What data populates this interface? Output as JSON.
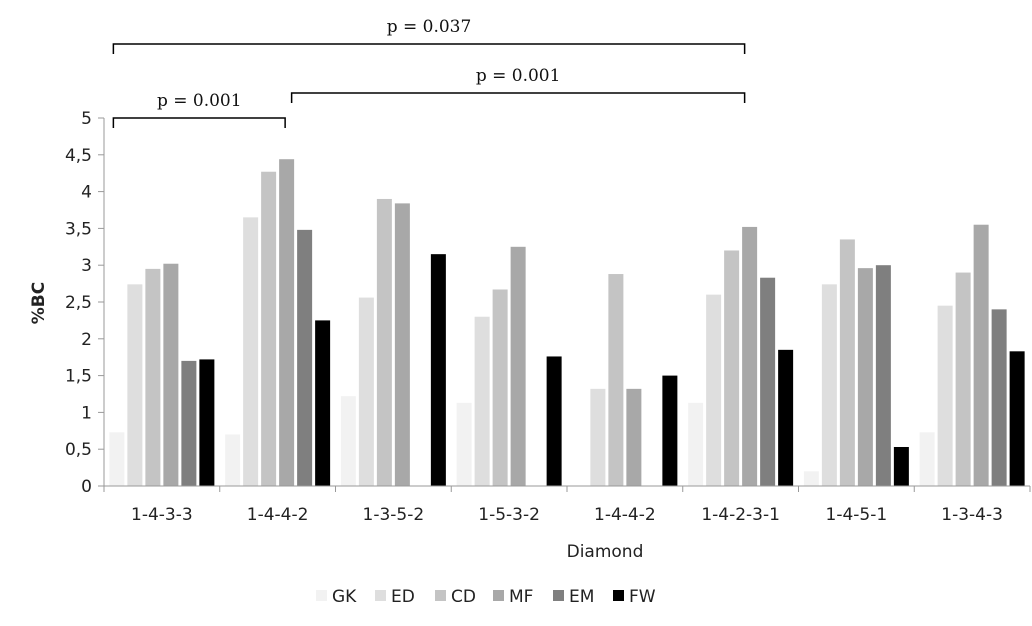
{
  "chart_data": {
    "type": "bar",
    "title": "",
    "xlabel": "Diamond",
    "ylabel": "%BC",
    "ylim": [
      0,
      5
    ],
    "yticks": [
      "0",
      "0,5",
      "1",
      "1,5",
      "2",
      "2,5",
      "3",
      "3,5",
      "4",
      "4,5",
      "5"
    ],
    "grid": false,
    "legend_position": "bottom",
    "categories": [
      "1-4-3-3",
      "1-4-4-2",
      "1-3-5-2",
      "1-5-3-2",
      "1-4-4-2",
      "1-4-2-3-1",
      "1-4-5-1",
      "1-3-4-3"
    ],
    "series": [
      {
        "name": "GK",
        "color": "#f2f2f2",
        "values": [
          0.73,
          0.7,
          1.22,
          1.13,
          0,
          1.13,
          0.2,
          0.73
        ]
      },
      {
        "name": "ED",
        "color": "#dedede",
        "values": [
          2.74,
          3.65,
          2.56,
          2.3,
          1.32,
          2.6,
          2.74,
          2.45
        ]
      },
      {
        "name": "CD",
        "color": "#c4c4c4",
        "values": [
          2.95,
          4.27,
          3.9,
          2.67,
          2.88,
          3.2,
          3.35,
          2.9
        ]
      },
      {
        "name": "MF",
        "color": "#a8a8a8",
        "values": [
          3.02,
          4.44,
          3.84,
          3.25,
          1.32,
          3.52,
          2.96,
          3.55
        ]
      },
      {
        "name": "EM",
        "color": "#7f7f7f",
        "values": [
          1.7,
          3.48,
          0,
          0,
          0,
          2.83,
          3.0,
          2.4
        ]
      },
      {
        "name": "FW",
        "color": "#000000",
        "values": [
          1.72,
          2.25,
          3.15,
          1.76,
          1.5,
          1.85,
          0.53,
          1.83
        ]
      }
    ],
    "annotations": [
      {
        "label": "p = 0.037",
        "from": 0,
        "to": 5,
        "level": 3
      },
      {
        "label": "p = 0.001",
        "from": 0,
        "to": 1,
        "level": 1
      },
      {
        "label": "p = 0.001",
        "from": 1,
        "to": 5,
        "level": 2
      }
    ]
  }
}
